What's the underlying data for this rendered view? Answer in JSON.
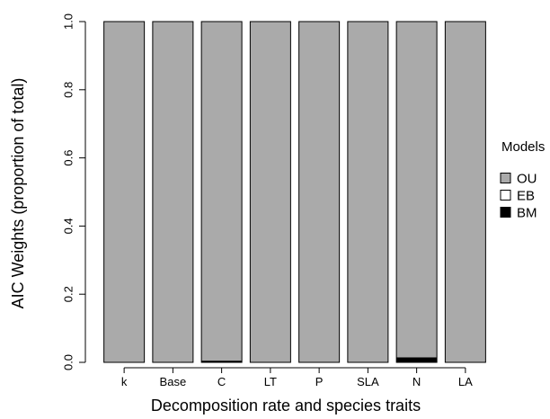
{
  "chart_data": {
    "type": "bar",
    "stacked": true,
    "categories": [
      "k",
      "Base",
      "C",
      "LT",
      "P",
      "SLA",
      "N",
      "LA"
    ],
    "series": [
      {
        "name": "BM",
        "color": "#000000",
        "values": [
          0,
          0,
          0.005,
          0,
          0,
          0,
          0.015,
          0
        ]
      },
      {
        "name": "EB",
        "color": "#ffffff",
        "values": [
          0,
          0,
          0,
          0,
          0,
          0,
          0,
          0
        ]
      },
      {
        "name": "OU",
        "color": "#aaaaaa",
        "values": [
          1,
          1,
          0.995,
          1,
          1,
          1,
          0.985,
          1
        ]
      }
    ],
    "xlabel": "Decomposition rate and species traits",
    "ylabel": "AIC Weights (proportion of total)",
    "ylim": [
      0,
      1
    ],
    "yticks": [
      0.0,
      0.2,
      0.4,
      0.6,
      0.8,
      1.0
    ],
    "ytick_labels": [
      "0.0",
      "0.2",
      "0.4",
      "0.6",
      "0.8",
      "1.0"
    ],
    "grid": false,
    "legend": {
      "title": "Models",
      "placement": "right",
      "entries": [
        {
          "name": "OU",
          "color": "#aaaaaa"
        },
        {
          "name": "EB",
          "color": "#ffffff"
        },
        {
          "name": "BM",
          "color": "#000000"
        }
      ]
    }
  }
}
